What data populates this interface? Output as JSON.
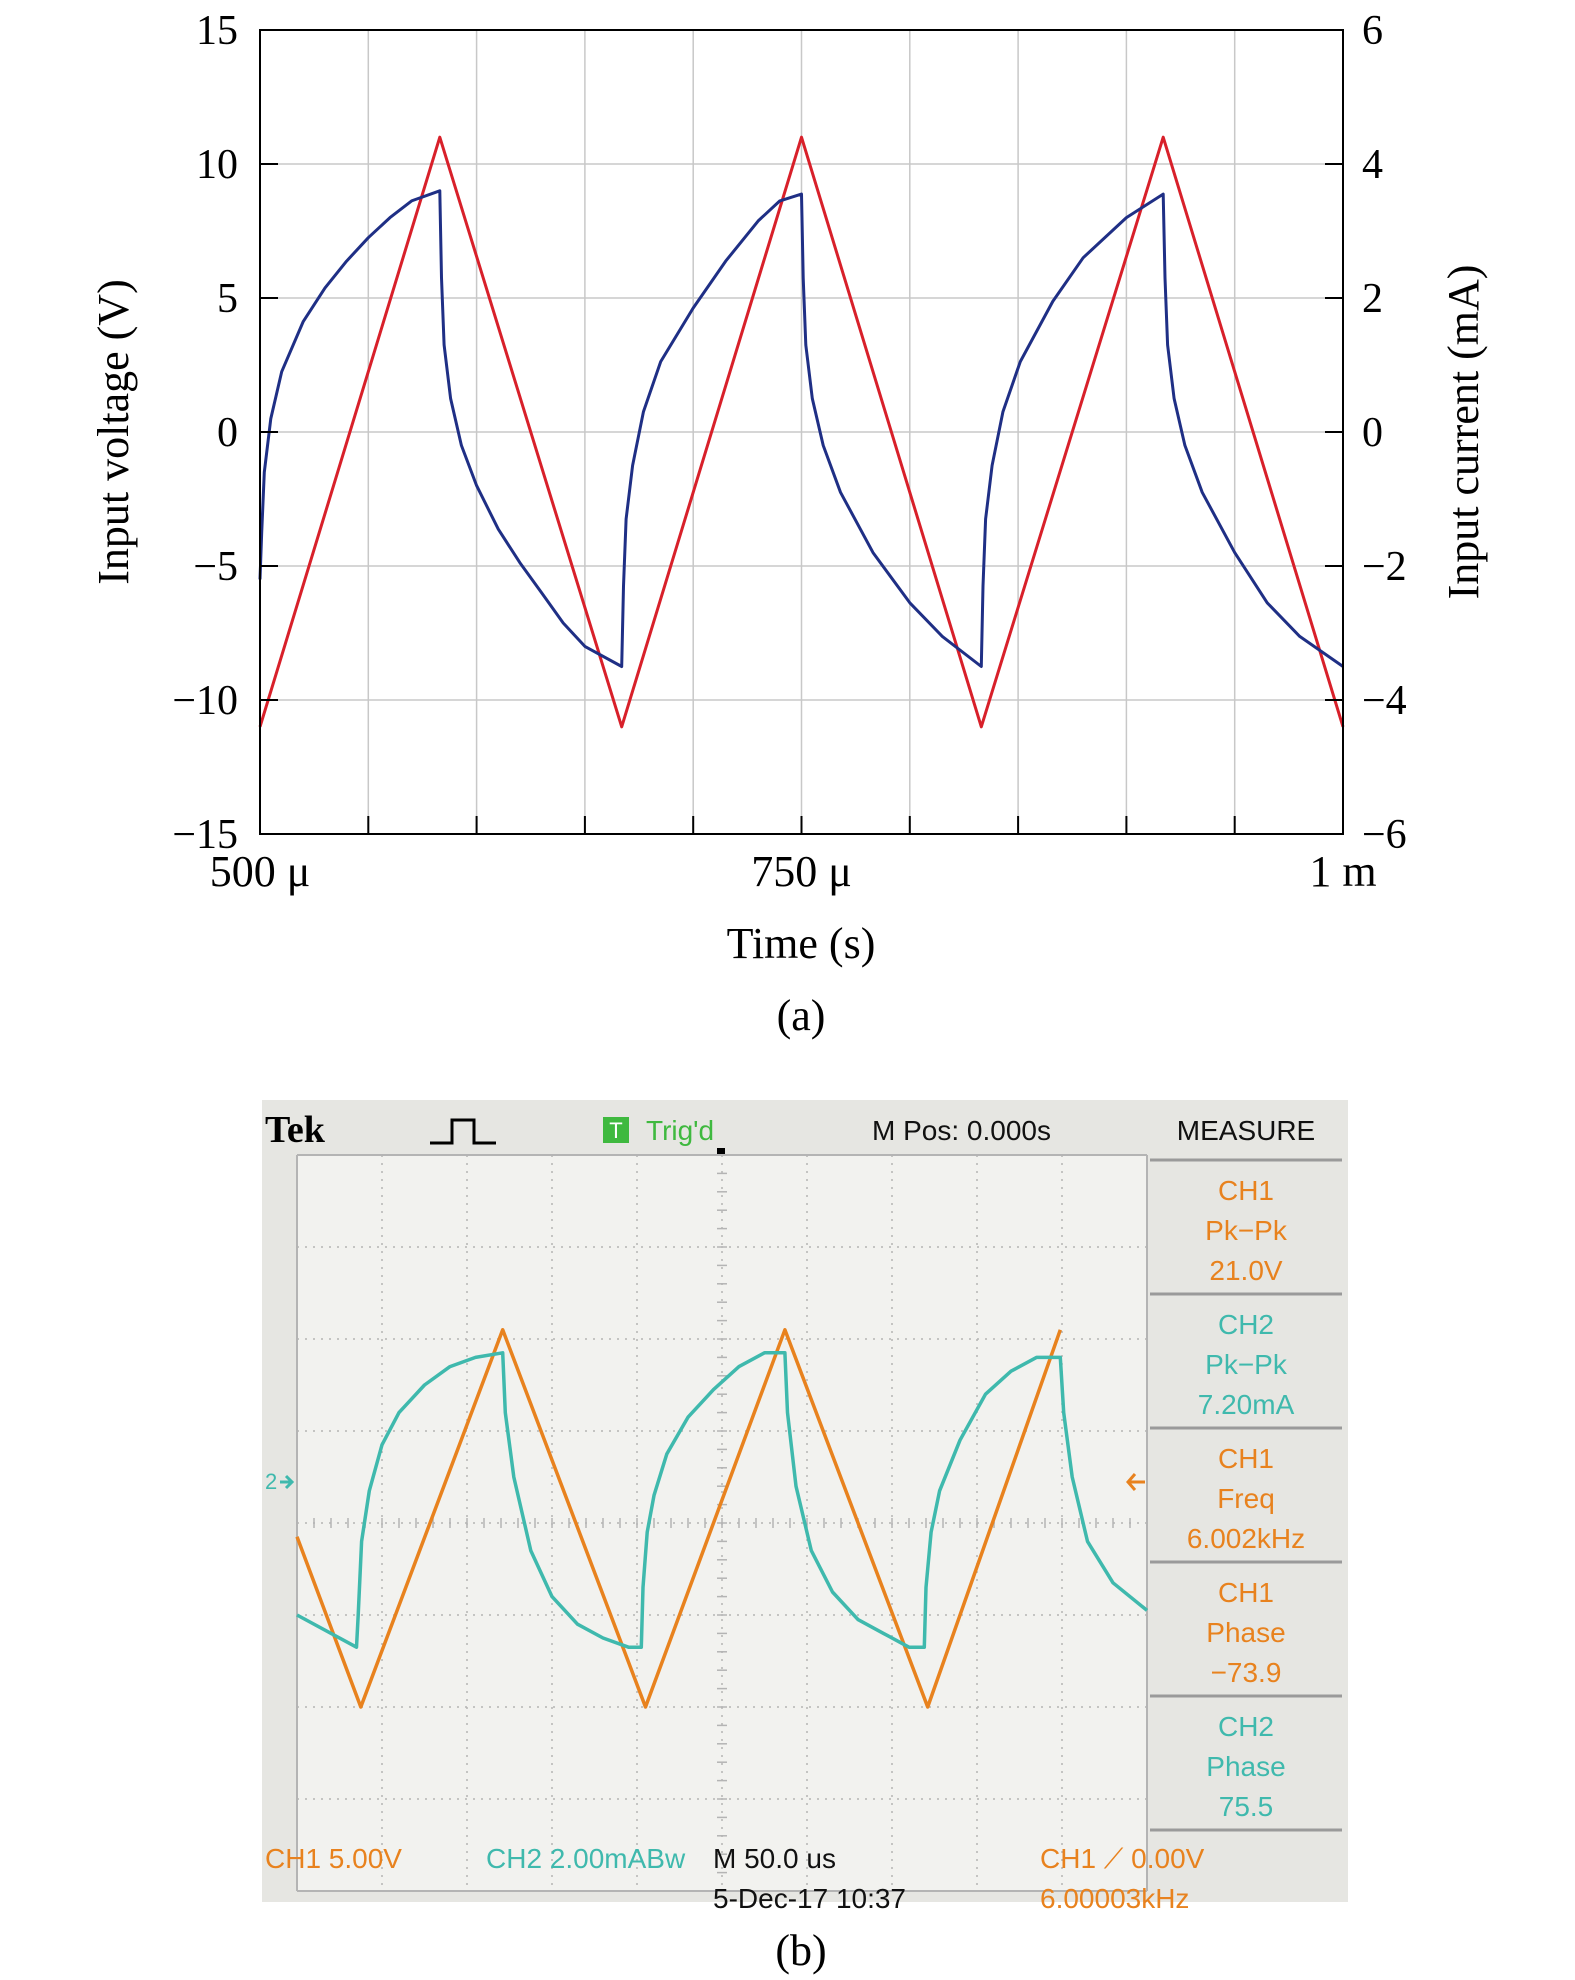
{
  "chart_data": [
    {
      "type": "line",
      "xlabel": "Time (s)",
      "ylabel": "Input voltage (V)",
      "y2label": "Input current (mA)",
      "caption": "(a)",
      "xlim": [
        0.0005,
        0.001
      ],
      "ylim": [
        -15,
        15
      ],
      "y2lim": [
        -6,
        6
      ],
      "grid": true,
      "x_ticks": [
        {
          "value": 0.0005,
          "label": "500 μ"
        },
        {
          "value": 0.00075,
          "label": "750 μ"
        },
        {
          "value": 0.001,
          "label": "1 m"
        }
      ],
      "y_ticks": [
        15,
        10,
        5,
        0,
        -5,
        -10,
        -15
      ],
      "y_tick_labels": [
        "15",
        "10",
        "5",
        "0",
        "−5",
        "−10",
        "−15"
      ],
      "y2_ticks": [
        6,
        4,
        2,
        0,
        -2,
        -4,
        -6
      ],
      "y2_tick_labels": [
        "6",
        "4",
        "2",
        "0",
        "−2",
        "−4",
        "−6"
      ],
      "series": [
        {
          "axis": "left",
          "color": "#d8202a",
          "x": [
            0.0005,
            0.000583,
            0.000667,
            0.00075,
            0.000833,
            0.000917,
            0.001
          ],
          "y": [
            -11,
            11,
            -11,
            11,
            -11,
            11,
            -11
          ]
        },
        {
          "axis": "right",
          "color": "#1f2f85",
          "x": [
            0.0005,
            0.0005008,
            0.000502,
            0.000505,
            0.00051,
            0.00052,
            0.00053,
            0.00054,
            0.00055,
            0.00056,
            0.00057,
            0.000583,
            0.0005838,
            0.000585,
            0.000588,
            0.000593,
            0.0006,
            0.00061,
            0.00062,
            0.00063,
            0.00064,
            0.00065,
            0.000667,
            0.0006678,
            0.000669,
            0.000672,
            0.000677,
            0.000685,
            0.0007,
            0.000715,
            0.00073,
            0.00074,
            0.00075,
            0.0007508,
            0.000752,
            0.000755,
            0.00076,
            0.000768,
            0.000783,
            0.0008,
            0.000815,
            0.000833,
            0.0008338,
            0.000835,
            0.000838,
            0.000843,
            0.000851,
            0.000866,
            0.00088,
            0.0009,
            0.000917,
            0.0009178,
            0.000919,
            0.000922,
            0.000927,
            0.000935,
            0.00095,
            0.000965,
            0.00098,
            0.001
          ],
          "y": [
            -2.2,
            -1.5,
            -0.6,
            0.2,
            0.9,
            1.65,
            2.15,
            2.55,
            2.9,
            3.2,
            3.45,
            3.6,
            2.3,
            1.3,
            0.5,
            -0.2,
            -0.8,
            -1.45,
            -1.95,
            -2.4,
            -2.85,
            -3.2,
            -3.5,
            -2.3,
            -1.3,
            -0.5,
            0.3,
            1.05,
            1.85,
            2.55,
            3.15,
            3.45,
            3.55,
            2.3,
            1.3,
            0.5,
            -0.2,
            -0.9,
            -1.8,
            -2.55,
            -3.05,
            -3.5,
            -2.3,
            -1.3,
            -0.5,
            0.3,
            1.05,
            1.95,
            2.6,
            3.2,
            3.55,
            2.3,
            1.3,
            0.5,
            -0.2,
            -0.9,
            -1.8,
            -2.55,
            -3.05,
            -3.5
          ]
        }
      ]
    },
    {
      "type": "line",
      "caption": "(b)",
      "scope": {
        "brand": "Tek",
        "trig_badge": "T",
        "trig_status": "Trig'd",
        "m_pos": "M Pos: 0.000s",
        "measure_title": "MEASURE",
        "measures": [
          {
            "channel": "CH1",
            "type": "Pk−Pk",
            "value": "21.0V",
            "color": "#e8821e"
          },
          {
            "channel": "CH2",
            "type": "Pk−Pk",
            "value": "7.20mA",
            "color": "#3fb9ad"
          },
          {
            "channel": "CH1",
            "type": "Freq",
            "value": "6.002kHz",
            "color": "#e8821e"
          },
          {
            "channel": "CH1",
            "type": "Phase",
            "value": "−73.9",
            "color": "#e8821e"
          },
          {
            "channel": "CH2",
            "type": "Phase",
            "value": "75.5",
            "color": "#3fb9ad"
          }
        ],
        "ch1_scale": "CH1  5.00V",
        "ch2_scale": "CH2  2.00mABw",
        "timebase": "M 50.0 us",
        "date": "5-Dec-17 10:37",
        "trigger": "CH1 ⟋ 0.00V",
        "trigger_freq": "6.00003kHz",
        "ch2_marker": "2",
        "colors": {
          "ch1": "#e8821e",
          "ch2": "#3fb9ad",
          "bg": "#e6e6e2",
          "grid": "#b4b4b4"
        }
      },
      "xlim_div": [
        0,
        10
      ],
      "ylim_div": [
        -4,
        4
      ],
      "series": [
        {
          "name": "CH1",
          "color": "#e8821e",
          "x": [
            0,
            0.75,
            2.42,
            4.1,
            5.74,
            7.42,
            8.98
          ],
          "y": [
            -0.15,
            -2.0,
            2.1,
            -2.0,
            2.1,
            -2.0,
            2.1
          ]
        },
        {
          "name": "CH2",
          "color": "#3fb9ad",
          "x": [
            0,
            0.7,
            0.72,
            0.76,
            0.85,
            1.0,
            1.2,
            1.5,
            1.8,
            2.1,
            2.42,
            2.45,
            2.55,
            2.75,
            3.0,
            3.3,
            3.6,
            3.9,
            4.05,
            4.07,
            4.12,
            4.2,
            4.35,
            4.6,
            4.9,
            5.2,
            5.5,
            5.74,
            5.77,
            5.87,
            6.05,
            6.3,
            6.6,
            6.9,
            7.2,
            7.38,
            7.4,
            7.46,
            7.56,
            7.8,
            8.1,
            8.4,
            8.7,
            8.98,
            9.02,
            9.12,
            9.3,
            9.6,
            10.0
          ],
          "y": [
            -1.0,
            -1.35,
            -1.0,
            -0.2,
            0.35,
            0.85,
            1.2,
            1.5,
            1.7,
            1.8,
            1.85,
            1.2,
            0.5,
            -0.3,
            -0.8,
            -1.1,
            -1.25,
            -1.35,
            -1.35,
            -0.7,
            -0.1,
            0.3,
            0.75,
            1.15,
            1.45,
            1.7,
            1.85,
            1.85,
            1.2,
            0.4,
            -0.3,
            -0.75,
            -1.05,
            -1.2,
            -1.35,
            -1.35,
            -0.7,
            -0.1,
            0.35,
            0.9,
            1.4,
            1.65,
            1.8,
            1.8,
            1.2,
            0.5,
            -0.2,
            -0.65,
            -0.95
          ]
        }
      ]
    }
  ]
}
